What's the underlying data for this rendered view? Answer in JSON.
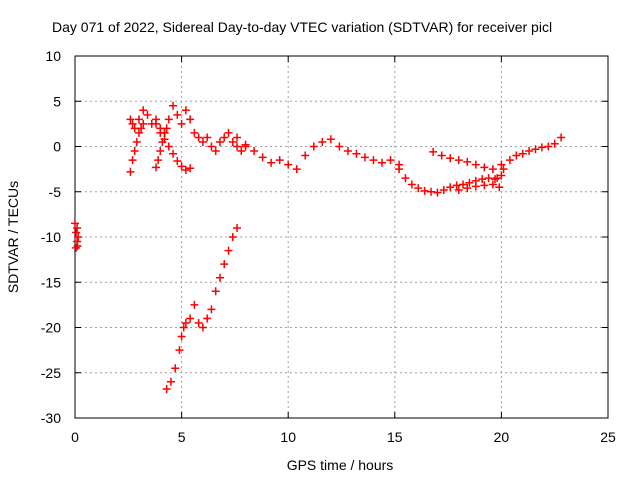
{
  "chart_data": {
    "type": "scatter",
    "title": "Day 071 of 2022, Sidereal Day-to-day VTEC variation (SDTVAR) for receiver picl",
    "xlabel": "GPS time / hours",
    "ylabel": "SDTVAR / TECUs",
    "xlim": [
      0,
      25
    ],
    "ylim": [
      -30,
      10
    ],
    "xticks": [
      0,
      5,
      10,
      15,
      20,
      25
    ],
    "yticks": [
      10,
      5,
      0,
      -5,
      -10,
      -15,
      -20,
      -25,
      -30
    ],
    "grid": true,
    "marker": "plus",
    "color": "#ff0000",
    "series": [
      {
        "name": "cluster-start",
        "x": [
          0.0,
          0.05,
          0.1,
          0.12,
          0.15,
          0.05,
          0.1
        ],
        "y": [
          -8.5,
          -9.5,
          -10.5,
          -11.0,
          -10.0,
          -11.2,
          -9.0
        ]
      },
      {
        "name": "main-early",
        "x": [
          2.6,
          2.7,
          2.8,
          3.0,
          3.2,
          3.4,
          3.6,
          3.8,
          4.0,
          4.2,
          4.4,
          4.6,
          4.8,
          5.0,
          5.2,
          5.4,
          5.6,
          5.8,
          6.0,
          6.2,
          6.4,
          6.6,
          6.8,
          7.0,
          7.2,
          7.4,
          7.6,
          7.8,
          8.0
        ],
        "y": [
          3.0,
          2.5,
          2.0,
          3.0,
          4.0,
          3.5,
          2.5,
          3.0,
          2.0,
          1.5,
          3.0,
          4.5,
          3.5,
          2.5,
          4.0,
          3.0,
          1.5,
          1.0,
          0.5,
          1.0,
          0.0,
          -0.5,
          0.5,
          1.0,
          1.5,
          0.5,
          0.0,
          -0.5,
          0.0
        ]
      },
      {
        "name": "dip-1",
        "x": [
          2.6,
          2.7,
          2.8,
          2.9,
          3.0,
          3.1,
          3.2
        ],
        "y": [
          -2.8,
          -1.5,
          -0.5,
          0.5,
          1.5,
          2.0,
          2.5
        ]
      },
      {
        "name": "dip-2",
        "x": [
          3.8,
          3.9,
          4.0,
          4.1,
          4.2,
          4.3
        ],
        "y": [
          -2.3,
          -1.5,
          -0.5,
          0.5,
          1.5,
          2.0
        ]
      },
      {
        "name": "branch-down",
        "x": [
          3.8,
          4.0,
          4.2,
          4.4,
          4.6,
          4.8,
          5.0,
          5.2,
          5.4
        ],
        "y": [
          2.5,
          1.5,
          0.8,
          0.0,
          -0.8,
          -1.6,
          -2.2,
          -2.6,
          -2.4
        ]
      },
      {
        "name": "main-mid",
        "x": [
          7.6,
          8.0,
          8.4,
          8.8,
          9.2,
          9.6,
          10.0,
          10.4,
          10.8,
          11.2,
          11.6,
          12.0,
          12.4,
          12.8,
          13.2,
          13.6,
          14.0,
          14.4,
          14.8,
          15.2
        ],
        "y": [
          1.0,
          0.2,
          -0.5,
          -1.2,
          -1.8,
          -1.5,
          -2.0,
          -2.5,
          -1.0,
          0.0,
          0.5,
          0.8,
          0.0,
          -0.5,
          -0.8,
          -1.2,
          -1.5,
          -1.8,
          -1.5,
          -2.0
        ]
      },
      {
        "name": "dip-15",
        "x": [
          15.2,
          15.5,
          15.8,
          16.1,
          16.4,
          16.7,
          17.0,
          17.3,
          17.6,
          17.9,
          18.2,
          18.5,
          18.8,
          19.1,
          19.4,
          19.7,
          20.0
        ],
        "y": [
          -2.5,
          -3.5,
          -4.2,
          -4.6,
          -4.9,
          -5.0,
          -5.1,
          -4.8,
          -4.5,
          -4.3,
          -4.2,
          -4.0,
          -3.8,
          -3.6,
          -3.5,
          -3.6,
          -3.2
        ]
      },
      {
        "name": "upper-band",
        "x": [
          16.8,
          17.2,
          17.6,
          18.0,
          18.4,
          18.8,
          19.2,
          19.6,
          20.0
        ],
        "y": [
          -0.6,
          -1.0,
          -1.3,
          -1.5,
          -1.7,
          -2.0,
          -2.3,
          -2.5,
          -2.0
        ]
      },
      {
        "name": "lower-band",
        "x": [
          18.0,
          18.4,
          18.8,
          19.2,
          19.6,
          19.9
        ],
        "y": [
          -4.8,
          -4.6,
          -4.4,
          -4.3,
          -4.2,
          -4.5
        ]
      },
      {
        "name": "rise-end",
        "x": [
          19.8,
          20.1,
          20.4,
          20.7,
          21.0,
          21.3,
          21.6,
          21.9,
          22.2,
          22.5,
          22.8
        ],
        "y": [
          -3.5,
          -2.5,
          -1.5,
          -1.0,
          -0.8,
          -0.5,
          -0.3,
          -0.1,
          0.0,
          0.3,
          1.0
        ]
      },
      {
        "name": "steep-rise",
        "x": [
          4.3,
          4.5,
          4.7,
          4.9,
          5.0,
          5.1,
          5.2,
          5.4,
          5.6,
          5.8,
          6.0,
          6.2,
          6.4,
          6.6,
          6.8,
          7.0,
          7.2,
          7.4,
          7.6
        ],
        "y": [
          -26.8,
          -26.0,
          -24.5,
          -22.5,
          -21.0,
          -20.0,
          -19.5,
          -19.0,
          -17.5,
          -19.5,
          -20.0,
          -19.0,
          -18.0,
          -16.0,
          -14.5,
          -13.0,
          -11.5,
          -10.0,
          -9.0
        ]
      }
    ]
  }
}
